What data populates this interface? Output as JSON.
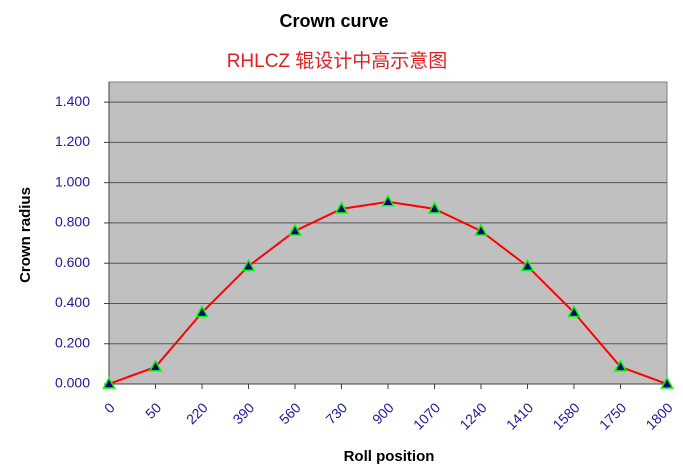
{
  "chart_data": {
    "type": "line",
    "title": "Crown curve",
    "subtitle": "RHLCZ 辊设计中高示意图",
    "x_label": "Roll position",
    "y_label": "Crown radius",
    "categories": [
      "0",
      "50",
      "220",
      "390",
      "560",
      "730",
      "900",
      "1070",
      "1240",
      "1410",
      "1580",
      "1750",
      "1800"
    ],
    "values": [
      0,
      0.085,
      0.355,
      0.585,
      0.76,
      0.87,
      0.905,
      0.87,
      0.76,
      0.585,
      0.355,
      0.085,
      0
    ],
    "color": "#ff0000",
    "marker_color": "#000080",
    "marker_edge_color": "#00ff00",
    "ylim": [
      0,
      1.5
    ],
    "yticks": [
      {
        "value": 0,
        "label": "0.000"
      },
      {
        "value": 0.2,
        "label": "0.200"
      },
      {
        "value": 0.4,
        "label": "0.400"
      },
      {
        "value": 0.6,
        "label": "0.600"
      },
      {
        "value": 0.8,
        "label": "0.800"
      },
      {
        "value": 1,
        "label": "1.000"
      },
      {
        "value": 1.2,
        "label": "1.200"
      },
      {
        "value": 1.4,
        "label": "1.400"
      }
    ],
    "grid": true
  }
}
